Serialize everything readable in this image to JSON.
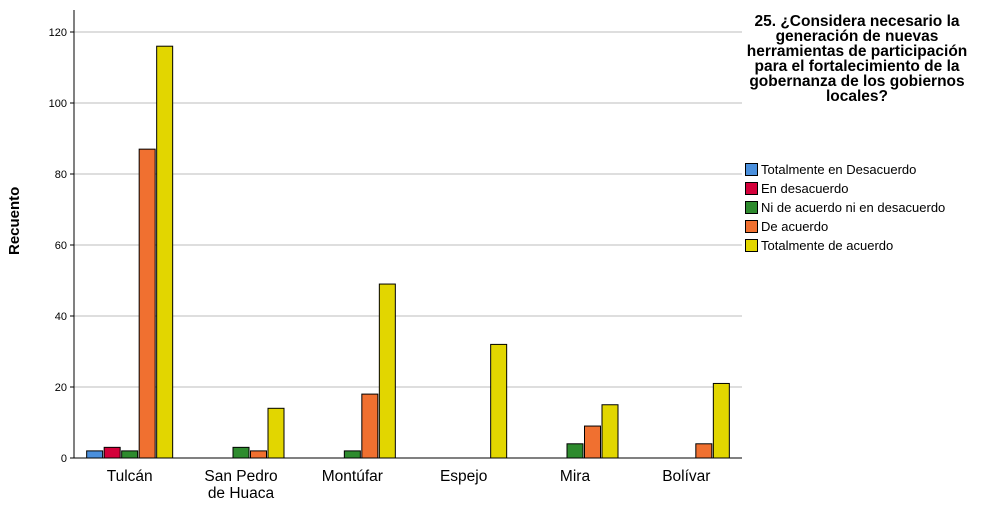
{
  "chart_data": {
    "type": "bar",
    "title": "25. ¿Considera necesario la generación de nuevas herramientas de participación para el fortalecimiento de la gobernanza de los gobiernos locales?",
    "xlabel": "",
    "ylabel": "Recuento",
    "ylim": [
      0,
      125
    ],
    "yticks": [
      0,
      20,
      40,
      60,
      80,
      100,
      120
    ],
    "grid": true,
    "legend_position": "right",
    "categories": [
      "Tulcán",
      "San Pedro de Huaca",
      "Montúfar",
      "Espejo",
      "Mira",
      "Bolívar"
    ],
    "series": [
      {
        "name": "Totalmente en Desacuerdo",
        "color": "#4a8fdc",
        "values": [
          2,
          0,
          0,
          0,
          0,
          0
        ]
      },
      {
        "name": "En desacuerdo",
        "color": "#d4003a",
        "values": [
          3,
          0,
          0,
          0,
          0,
          0
        ]
      },
      {
        "name": "Ni de acuerdo ni en desacuerdo",
        "color": "#2e8b2e",
        "values": [
          2,
          3,
          2,
          0,
          4,
          0
        ]
      },
      {
        "name": "De acuerdo",
        "color": "#f07030",
        "values": [
          87,
          2,
          18,
          0,
          9,
          4
        ]
      },
      {
        "name": "Totalmente de acuerdo",
        "color": "#e2d600",
        "values": [
          116,
          14,
          49,
          32,
          15,
          21
        ]
      }
    ]
  }
}
